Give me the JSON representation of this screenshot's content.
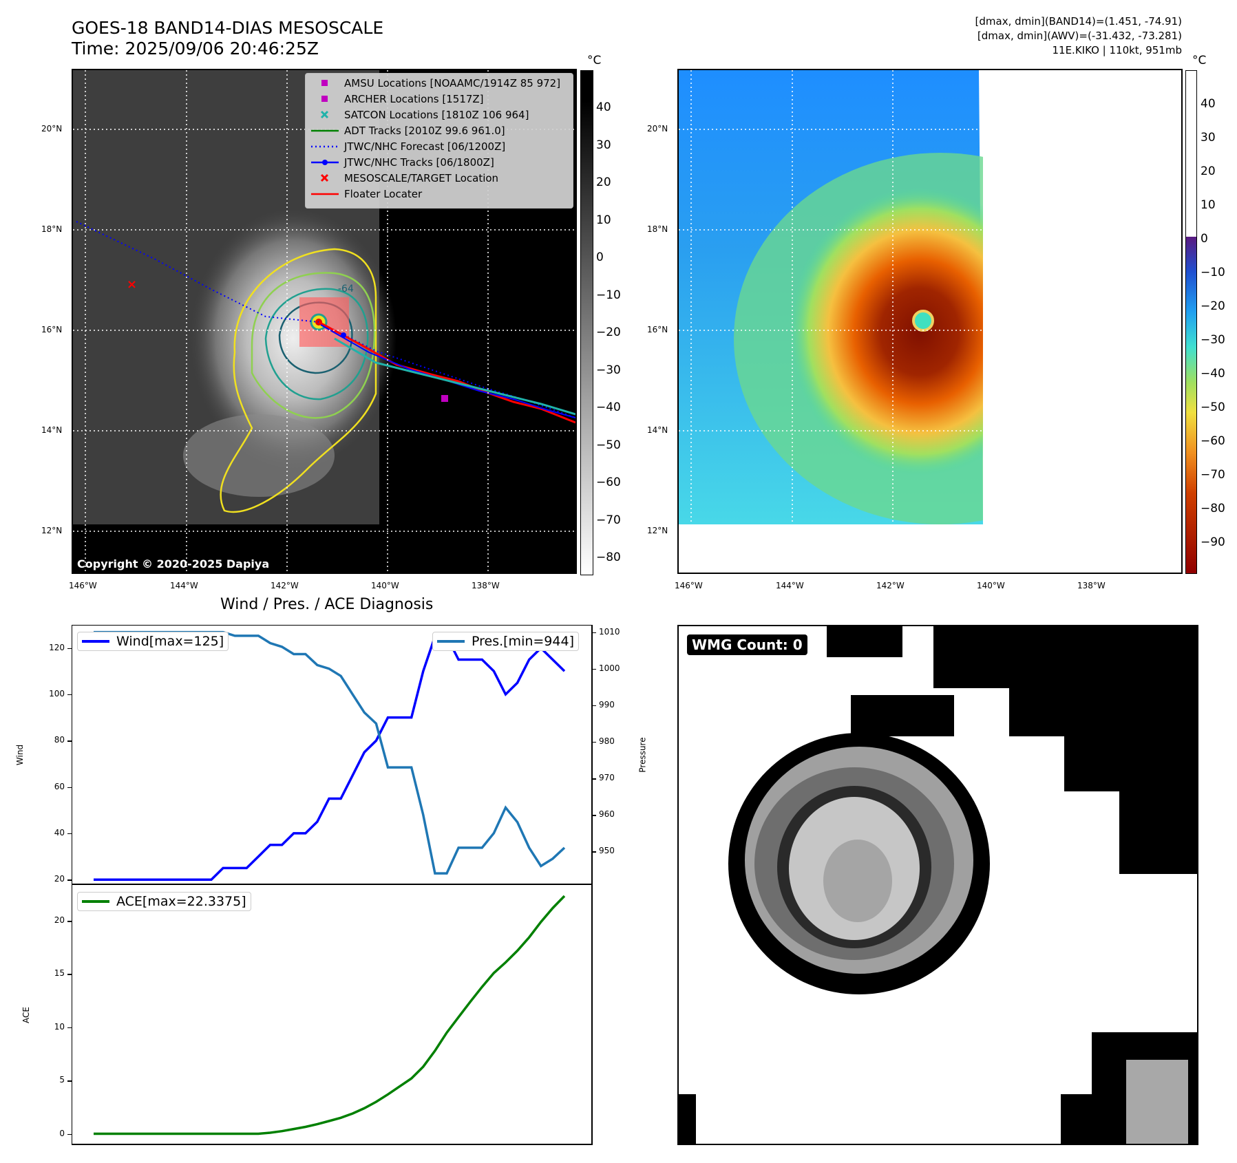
{
  "header": {
    "title_line1": "GOES-18 BAND14-DIAS MESOSCALE",
    "title_line2": "Time: 2025/09/06 20:46:25Z",
    "info_line1": "[dmax, dmin](BAND14)=(1.451, -74.91)",
    "info_line2": "[dmax, dmin](AWV)=(-31.432, -73.281)",
    "info_line3": "11E.KIKO | 110kt, 951mb"
  },
  "map_axes": {
    "lon_labels": [
      "146°W",
      "144°W",
      "142°W",
      "140°W",
      "138°W"
    ],
    "lat_labels": [
      "20°N",
      "18°N",
      "16°N",
      "14°N",
      "12°N"
    ],
    "copyright": "Copyright © 2020-2025 Dapiya",
    "contour_label": "-64"
  },
  "legend": {
    "items": [
      {
        "label": "AMSU Locations [NOAAMC/1914Z 85 972]",
        "color": "#c000c0",
        "marker": "square"
      },
      {
        "label": "ARCHER Locations [1517Z]",
        "color": "#c000c0",
        "marker": "square"
      },
      {
        "label": "SATCON Locations [1810Z 106 964]",
        "color": "#20b2aa",
        "marker": "x"
      },
      {
        "label": "ADT Tracks [2010Z 99.6 961.0]",
        "color": "#008000",
        "marker": "line"
      },
      {
        "label": "JTWC/NHC Forecast [06/1200Z]",
        "color": "#0000ff",
        "marker": "dotted"
      },
      {
        "label": "JTWC/NHC Tracks [06/1800Z]",
        "color": "#0000ff",
        "marker": "line-dot"
      },
      {
        "label": "MESOSCALE/TARGET Location",
        "color": "#ff0000",
        "marker": "x"
      },
      {
        "label": "Floater Locater",
        "color": "#ff0000",
        "marker": "line"
      }
    ]
  },
  "colorbar_left": {
    "unit": "°C",
    "ticks": [
      "40",
      "30",
      "20",
      "10",
      "0",
      "−10",
      "−20",
      "−30",
      "−40",
      "−50",
      "−60",
      "−70",
      "−80"
    ]
  },
  "colorbar_right": {
    "unit": "°C",
    "ticks": [
      "40",
      "30",
      "20",
      "10",
      "0",
      "−10",
      "−20",
      "−30",
      "−40",
      "−50",
      "−60",
      "−70",
      "−80",
      "−90"
    ]
  },
  "diagnosis": {
    "title": "Wind / Pres. / ACE Diagnosis",
    "wind_axis_label": "Wind",
    "pressure_axis_label": "Pressure",
    "ace_axis_label": "ACE",
    "wind_legend": "Wind[max=125]",
    "pres_legend": "Pres.[min=944]",
    "ace_legend": "ACE[max=22.3375]",
    "wind_ticks": [
      "120",
      "100",
      "80",
      "60",
      "40",
      "20"
    ],
    "pres_ticks": [
      "1010",
      "1000",
      "990",
      "980",
      "970",
      "960",
      "950"
    ],
    "ace_ticks": [
      "20",
      "15",
      "10",
      "5",
      "0"
    ]
  },
  "wmg": {
    "label": "WMG Count: 0"
  },
  "chart_data": [
    {
      "type": "line",
      "title": "Wind / Pres. / ACE Diagnosis",
      "xlabel": "",
      "ylabel": "Wind",
      "y2label": "Pressure",
      "ylim": [
        18,
        130
      ],
      "y2lim": [
        941,
        1012
      ],
      "series": [
        {
          "name": "Wind[max=125]",
          "color": "#0000ff",
          "values": [
            20,
            20,
            20,
            20,
            20,
            20,
            20,
            20,
            20,
            20,
            20,
            25,
            25,
            25,
            30,
            35,
            35,
            40,
            40,
            45,
            55,
            55,
            65,
            75,
            80,
            90,
            90,
            90,
            110,
            125,
            125,
            115,
            115,
            115,
            110,
            100,
            105,
            115,
            120,
            115,
            110
          ]
        },
        {
          "name": "Pres.[min=944]",
          "color": "#1f77b4",
          "axis": "right",
          "values": [
            1010,
            1010,
            1010,
            1010,
            1010,
            1010,
            1010,
            1010,
            1010,
            1010,
            1010,
            1010,
            1009,
            1009,
            1009,
            1007,
            1006,
            1004,
            1004,
            1001,
            1000,
            998,
            993,
            988,
            985,
            973,
            973,
            973,
            960,
            944,
            944,
            951,
            951,
            951,
            955,
            962,
            958,
            951,
            946,
            948,
            951
          ]
        }
      ]
    },
    {
      "type": "line",
      "ylabel": "ACE",
      "ylim": [
        -1,
        23.5
      ],
      "series": [
        {
          "name": "ACE[max=22.3375]",
          "color": "#008000",
          "values": [
            0,
            0,
            0,
            0,
            0,
            0,
            0,
            0,
            0,
            0,
            0,
            0,
            0,
            0,
            0,
            0.1,
            0.25,
            0.45,
            0.65,
            0.9,
            1.2,
            1.5,
            1.9,
            2.4,
            3.0,
            3.7,
            4.45,
            5.2,
            6.3,
            7.8,
            9.5,
            10.95,
            12.4,
            13.8,
            15.1,
            16.1,
            17.2,
            18.45,
            19.9,
            21.2,
            22.3375
          ]
        }
      ]
    }
  ]
}
